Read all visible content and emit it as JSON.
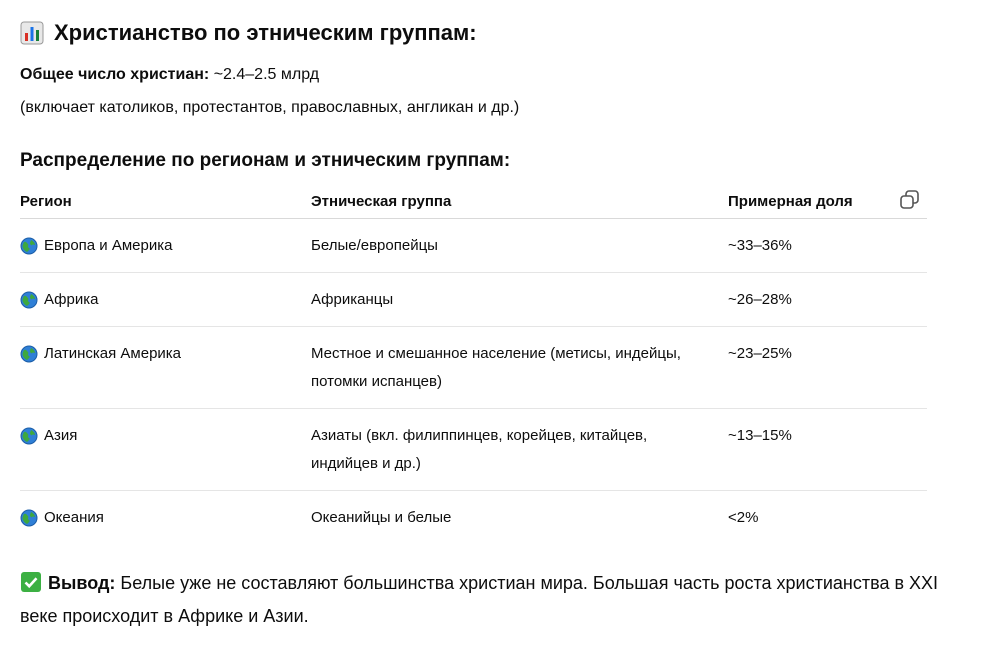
{
  "header": {
    "title": "Христианство по этническим группам:"
  },
  "summary": {
    "label": "Общее число христиан:",
    "value": "~2.4–2.5 млрд",
    "note": "(включает католиков, протестантов, православных, англикан и др.)"
  },
  "section": {
    "title": "Распределение по регионам и этническим группам:"
  },
  "table": {
    "headers": [
      "Регион",
      "Этническая группа",
      "Примерная доля"
    ],
    "rows": [
      [
        "Европа и Америка",
        "Белые/европейцы",
        "~33–36%"
      ],
      [
        "Африка",
        "Африканцы",
        "~26–28%"
      ],
      [
        "Латинская Америка",
        "Местное и смешанное население (метисы, индейцы, потомки испанцев)",
        "~23–25%"
      ],
      [
        "Азия",
        "Азиаты (вкл. филиппинцев, корейцев, китайцев, индийцев и др.)",
        "~13–15%"
      ],
      [
        "Океания",
        "Океанийцы и белые",
        "<2%"
      ]
    ]
  },
  "conclusion": {
    "label": "Вывод:",
    "text": "Белые уже не составляют большинства христиан мира. Большая часть роста христианства в XXI веке происходит в Африке и Азии."
  }
}
